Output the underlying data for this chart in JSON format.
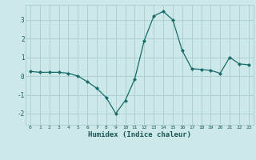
{
  "x": [
    0,
    1,
    2,
    3,
    4,
    5,
    6,
    7,
    8,
    9,
    10,
    11,
    12,
    13,
    14,
    15,
    16,
    17,
    18,
    19,
    20,
    21,
    22,
    23
  ],
  "y": [
    0.25,
    0.2,
    0.2,
    0.2,
    0.15,
    0.0,
    -0.3,
    -0.65,
    -1.15,
    -2.0,
    -1.3,
    -0.15,
    1.9,
    3.2,
    3.45,
    3.0,
    1.35,
    0.4,
    0.35,
    0.3,
    0.15,
    1.0,
    0.65,
    0.6
  ],
  "xlabel": "Humidex (Indice chaleur)",
  "ylabel": "",
  "bg_color": "#cce8e8",
  "line_color": "#1a6b6b",
  "marker_color": "#1a6b6b",
  "grid_color": "#aacccc",
  "text_color": "#1a5555",
  "ylim": [
    -2.6,
    3.8
  ],
  "xlim": [
    -0.5,
    23.5
  ],
  "yticks": [
    -2,
    -1,
    0,
    1,
    2,
    3
  ],
  "xticks": [
    0,
    1,
    2,
    3,
    4,
    5,
    6,
    7,
    8,
    9,
    10,
    11,
    12,
    13,
    14,
    15,
    16,
    17,
    18,
    19,
    20,
    21,
    22,
    23
  ]
}
